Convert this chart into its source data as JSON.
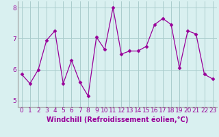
{
  "x": [
    0,
    1,
    2,
    3,
    4,
    5,
    6,
    7,
    8,
    9,
    10,
    11,
    12,
    13,
    14,
    15,
    16,
    17,
    18,
    19,
    20,
    21,
    22,
    23
  ],
  "y": [
    5.85,
    5.55,
    6.0,
    6.95,
    7.25,
    5.55,
    6.3,
    5.6,
    5.15,
    7.05,
    6.65,
    8.0,
    6.5,
    6.6,
    6.6,
    6.75,
    7.45,
    7.65,
    7.45,
    6.05,
    7.25,
    7.15,
    5.85,
    5.7
  ],
  "line_color": "#990099",
  "marker": "D",
  "marker_size": 2.5,
  "bg_color": "#d9f0f0",
  "grid_color": "#aacccc",
  "xlabel": "Windchill (Refroidissement éolien,°C)",
  "xlabel_color": "#990099",
  "xlabel_fontsize": 7.0,
  "tick_color": "#990099",
  "tick_fontsize": 6.5,
  "ylim": [
    4.8,
    8.2
  ],
  "yticks": [
    5,
    6,
    7,
    8
  ],
  "xlim": [
    -0.5,
    23.5
  ]
}
